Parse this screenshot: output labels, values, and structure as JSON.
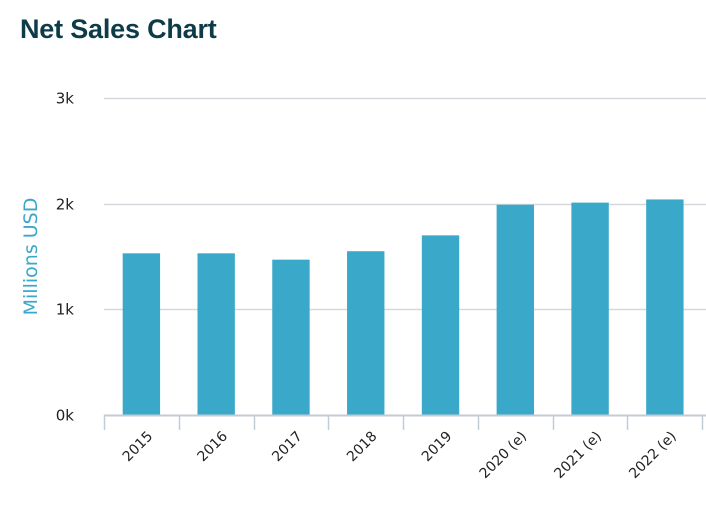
{
  "chart_data": {
    "type": "bar",
    "title": "Net Sales Chart",
    "xlabel": "",
    "ylabel": "Millions USD",
    "categories": [
      "2015",
      "2016",
      "2017",
      "2018",
      "2019",
      "2020 (e)",
      "2021 (e)",
      "2022 (e)"
    ],
    "values": [
      1530,
      1530,
      1470,
      1550,
      1700,
      1990,
      2010,
      2040
    ],
    "ylim": [
      0,
      3000
    ],
    "yticks": [
      0,
      1000,
      2000,
      3000
    ],
    "ytick_labels": [
      "0k",
      "1k",
      "2k",
      "3k"
    ],
    "grid": true,
    "legend": "none"
  },
  "colors": {
    "bar": "#3aa8c9",
    "grid": "#d5d8dc",
    "axis": "#c3cbd6",
    "title": "#0d3b47",
    "ylabel": "#3aa8c9"
  }
}
